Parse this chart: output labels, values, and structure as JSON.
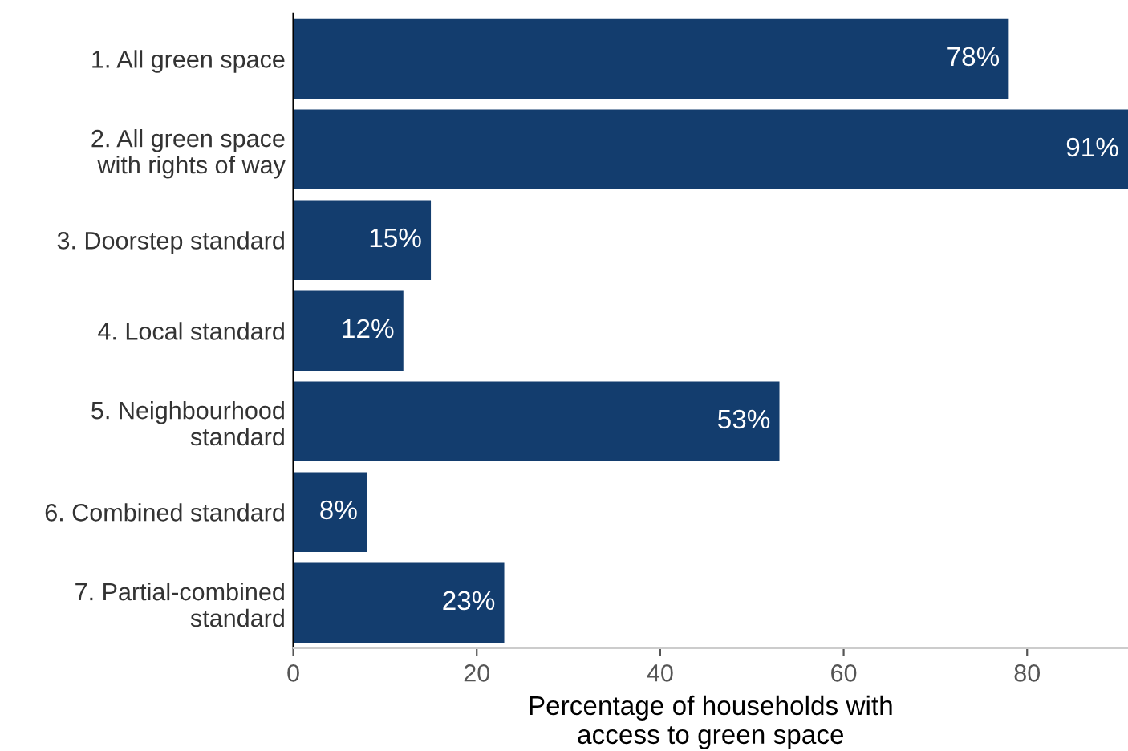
{
  "chart_data": {
    "type": "bar",
    "orientation": "horizontal",
    "categories": [
      "1. All green space",
      "2. All green space\nwith rights of way",
      "3. Doorstep standard",
      "4. Local standard",
      "5. Neighbourhood\nstandard",
      "6. Combined standard",
      "7. Partial-combined\nstandard"
    ],
    "values": [
      78,
      91,
      15,
      12,
      53,
      8,
      23
    ],
    "value_labels": [
      "78%",
      "91%",
      "15%",
      "12%",
      "53%",
      "8%",
      "23%"
    ],
    "color": "#133d6e",
    "xlabel": "Percentage of households with\naccess to green space",
    "xlim": [
      0,
      91
    ],
    "xticks": [
      0,
      20,
      40,
      60,
      80
    ],
    "grid": false,
    "legend": false
  }
}
